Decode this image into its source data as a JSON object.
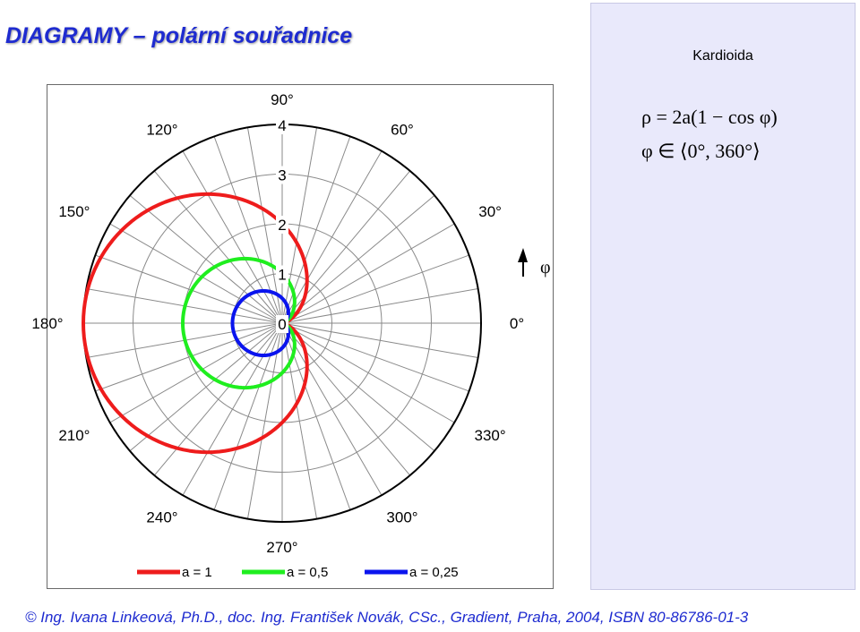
{
  "slide": {
    "title": "DIAGRAMY – polární souřadnice",
    "footer": "© Ing. Ivana Linkeová, Ph.D., doc. Ing. František Novák, CSc., Gradient, Praha, 2004, ISBN 80-86786-01-3"
  },
  "panel": {
    "heading": "Kardioida",
    "formula_line1": "ρ = 2a(1 − cos φ)",
    "formula_line2": "φ ∈ ⟨0°, 360°⟩"
  },
  "chart_data": {
    "type": "polar",
    "equation": "rho = 2a(1 - cos phi)",
    "r_ticks": [
      "0",
      "1",
      "2",
      "3",
      "4"
    ],
    "r_range": [
      0,
      4
    ],
    "angle_labels": [
      {
        "angle": 0,
        "text": "0°"
      },
      {
        "angle": 30,
        "text": "30°"
      },
      {
        "angle": 60,
        "text": "60°"
      },
      {
        "angle": 90,
        "text": "90°"
      },
      {
        "angle": 120,
        "text": "120°"
      },
      {
        "angle": 150,
        "text": "150°"
      },
      {
        "angle": 180,
        "text": "180°"
      },
      {
        "angle": 210,
        "text": "210°"
      },
      {
        "angle": 240,
        "text": "240°"
      },
      {
        "angle": 270,
        "text": "270°"
      },
      {
        "angle": 300,
        "text": "300°"
      },
      {
        "angle": 330,
        "text": "330°"
      }
    ],
    "angle_grid_step": 10,
    "grid": true,
    "direction_label": "φ",
    "series": [
      {
        "name": "a = 1",
        "a": 1,
        "color": "#ee1c1c"
      },
      {
        "name": "a = 0,5",
        "a": 0.5,
        "color": "#1fee1f"
      },
      {
        "name": "a = 0,25",
        "a": 0.25,
        "color": "#0a14ee"
      }
    ]
  }
}
